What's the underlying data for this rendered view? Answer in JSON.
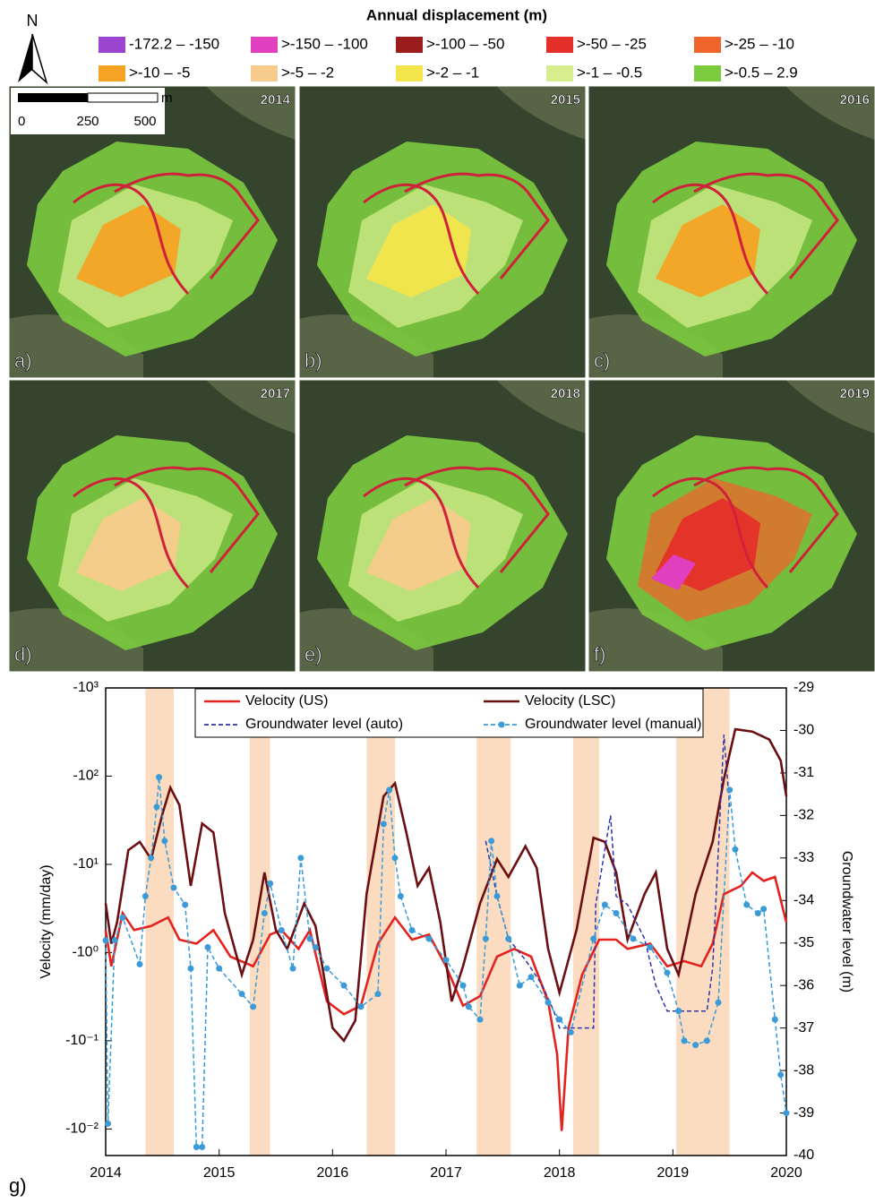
{
  "north_arrow": "N",
  "legend": {
    "title": "Annual displacement (m)",
    "items": [
      {
        "label": "-172.2 – -150",
        "color": "#9a44cf"
      },
      {
        "label": ">-150 – -100",
        "color": "#e03fbf"
      },
      {
        "label": ">-100 – -50",
        "color": "#9b1c1c"
      },
      {
        "label": ">-50 – -25",
        "color": "#e5302a"
      },
      {
        "label": ">-25 – -10",
        "color": "#f0652b"
      },
      {
        "label": ">-10 – -5",
        "color": "#f4a324"
      },
      {
        "label": ">-5 – -2",
        "color": "#f7cb8b"
      },
      {
        "label": ">-2 – -1",
        "color": "#f3e54b"
      },
      {
        "label": ">-1 – -0.5",
        "color": "#d6ee8e"
      },
      {
        "label": ">-0.5 – 2.9",
        "color": "#7ccb3e"
      }
    ]
  },
  "scale_bar": {
    "unit": "m",
    "labels": [
      "0",
      "250",
      "500"
    ]
  },
  "panels": [
    {
      "letter": "a)",
      "year": "2014"
    },
    {
      "letter": "b)",
      "year": "2015"
    },
    {
      "letter": "c)",
      "year": "2016"
    },
    {
      "letter": "d)",
      "year": "2017"
    },
    {
      "letter": "e)",
      "year": "2018"
    },
    {
      "letter": "f)",
      "year": "2019"
    }
  ],
  "chart_label": "g)",
  "chart_data": {
    "type": "line",
    "y_label": "Velocity (mm/day)",
    "y2_label": "Groundwater level (m)",
    "xlim": [
      2014,
      2020
    ],
    "xticks": [
      2014,
      2015,
      2016,
      2017,
      2018,
      2019,
      2020
    ],
    "ylim": [
      -1000,
      -0.005
    ],
    "y_log": true,
    "yticks": [
      {
        "value": -1000,
        "label": "-10³"
      },
      {
        "value": -100,
        "label": "-10²"
      },
      {
        "value": -10,
        "label": "-10¹"
      },
      {
        "value": -1,
        "label": "-10⁰"
      },
      {
        "value": -0.1,
        "label": "-10⁻¹"
      },
      {
        "value": -0.01,
        "label": "-10⁻²"
      }
    ],
    "y2lim": [
      -29,
      -40
    ],
    "y2ticks": [
      -29,
      -30,
      -31,
      -32,
      -33,
      -34,
      -35,
      -36,
      -37,
      -38,
      -39,
      -40
    ],
    "shaded_periods": [
      [
        2014.35,
        2014.6
      ],
      [
        2015.27,
        2015.45
      ],
      [
        2016.3,
        2016.55
      ],
      [
        2017.27,
        2017.57
      ],
      [
        2018.12,
        2018.35
      ],
      [
        2019.03,
        2019.5
      ]
    ],
    "shade_color": "#fbdcc0",
    "legend_position": "top",
    "series": [
      {
        "name": "Velocity (US)",
        "color": "#e3231f",
        "dash": false,
        "marker": false,
        "x": [
          2014.0,
          2014.05,
          2014.15,
          2014.25,
          2014.4,
          2014.55,
          2014.65,
          2014.8,
          2014.95,
          2015.1,
          2015.3,
          2015.45,
          2015.55,
          2015.7,
          2015.8,
          2015.95,
          2016.1,
          2016.25,
          2016.4,
          2016.55,
          2016.7,
          2016.85,
          2017.0,
          2017.15,
          2017.3,
          2017.45,
          2017.6,
          2017.75,
          2017.9,
          2017.98,
          2018.02,
          2018.08,
          2018.2,
          2018.35,
          2018.5,
          2018.6,
          2018.8,
          2018.95,
          2019.1,
          2019.25,
          2019.35,
          2019.45,
          2019.6,
          2019.7,
          2019.8,
          2019.9,
          2020.0
        ],
        "values": [
          -1.8,
          -0.7,
          -2.8,
          -1.8,
          -2,
          -2.5,
          -1.4,
          -1.26,
          -1.8,
          -0.9,
          -0.7,
          -1.6,
          -1.8,
          -1.1,
          -1.8,
          -0.28,
          -0.2,
          -0.25,
          -1.26,
          -2.5,
          -1.4,
          -1.6,
          -0.7,
          -0.25,
          -0.32,
          -0.9,
          -1.1,
          -0.9,
          -0.28,
          -0.07,
          -0.0095,
          -0.14,
          -0.56,
          -1.4,
          -1.4,
          -1.1,
          -1.26,
          -0.7,
          -0.8,
          -0.7,
          -1.26,
          -4.6,
          -5.7,
          -8.1,
          -6.5,
          -7.2,
          -2.2
        ]
      },
      {
        "name": "Velocity (LSC)",
        "color": "#6b0f12",
        "dash": false,
        "marker": false,
        "x": [
          2014.0,
          2014.05,
          2014.1,
          2014.2,
          2014.3,
          2014.4,
          2014.5,
          2014.57,
          2014.65,
          2014.75,
          2014.85,
          2014.95,
          2015.05,
          2015.2,
          2015.3,
          2015.4,
          2015.5,
          2015.6,
          2015.75,
          2015.85,
          2016.0,
          2016.1,
          2016.2,
          2016.3,
          2016.45,
          2016.55,
          2016.65,
          2016.75,
          2016.85,
          2016.95,
          2017.05,
          2017.15,
          2017.3,
          2017.45,
          2017.55,
          2017.7,
          2017.8,
          2017.9,
          2018.0,
          2018.15,
          2018.3,
          2018.4,
          2018.5,
          2018.6,
          2018.75,
          2018.85,
          2018.95,
          2019.05,
          2019.2,
          2019.35,
          2019.45,
          2019.55,
          2019.7,
          2019.85,
          2019.95,
          2020.0
        ],
        "values": [
          -3.6,
          -1.26,
          -2.2,
          -14.5,
          -18,
          -11.5,
          -37,
          -74,
          -47,
          -5.7,
          -29,
          -23,
          -2.8,
          -0.56,
          -1.4,
          -8.1,
          -1.8,
          -1.1,
          -3.6,
          -2,
          -0.14,
          -0.1,
          -0.17,
          -4.6,
          -59,
          -83,
          -23,
          -5.7,
          -9.1,
          -2.2,
          -0.28,
          -0.7,
          -3.6,
          -11.5,
          -7.2,
          -16,
          -9.1,
          -1.1,
          -0.35,
          -1.8,
          -20,
          -18,
          -8.1,
          -1.4,
          -4.6,
          -8.1,
          -1.1,
          -0.56,
          -4.6,
          -18,
          -93,
          -340,
          -320,
          -260,
          -150,
          -59
        ]
      },
      {
        "name": "Groundwater level (auto)",
        "color": "#3036a8",
        "axis": "y2",
        "dash": true,
        "marker": false,
        "x": [
          2017.35,
          2017.45,
          2017.55,
          2017.7,
          2017.85,
          2017.95,
          2018.0,
          2018.3,
          2018.32,
          2018.45,
          2018.5,
          2018.6,
          2018.75,
          2018.85,
          2018.95,
          2019.05,
          2019.3,
          2019.35,
          2019.45,
          2019.5
        ],
        "values": [
          -32.6,
          -33.9,
          -34.9,
          -35.4,
          -36.0,
          -36.6,
          -37.0,
          -37.0,
          -34.1,
          -32.0,
          -33.9,
          -34.1,
          -34.9,
          -36.0,
          -36.6,
          -36.6,
          -36.6,
          -35.6,
          -30.1,
          -31.8
        ]
      },
      {
        "name": "Groundwater level (manual)",
        "color": "#3a9bd8",
        "axis": "y2",
        "dash": true,
        "marker": true,
        "x": [
          2014.0,
          2014.02,
          2014.08,
          2014.15,
          2014.3,
          2014.35,
          2014.4,
          2014.45,
          2014.47,
          2014.52,
          2014.6,
          2014.7,
          2014.75,
          2014.8,
          2014.85,
          2014.9,
          2015.0,
          2015.2,
          2015.3,
          2015.4,
          2015.45,
          2015.55,
          2015.65,
          2015.72,
          2015.8,
          2015.85,
          2015.95,
          2016.1,
          2016.25,
          2016.4,
          2016.45,
          2016.5,
          2016.55,
          2016.6,
          2016.7,
          2016.85,
          2017.0,
          2017.15,
          2017.2,
          2017.3,
          2017.35,
          2017.4,
          2017.45,
          2017.55,
          2017.65,
          2017.75,
          2017.9,
          2018.0,
          2018.1,
          2018.3,
          2018.4,
          2018.5,
          2018.65,
          2018.8,
          2018.95,
          2019.05,
          2019.1,
          2019.2,
          2019.3,
          2019.4,
          2019.5,
          2019.55,
          2019.65,
          2019.75,
          2019.8,
          2019.9,
          2019.95,
          2020.0
        ],
        "values": [
          -34.94,
          -39.25,
          -34.94,
          -34.4,
          -35.5,
          -33.9,
          -33.0,
          -31.8,
          -31.1,
          -32.6,
          -33.7,
          -34.1,
          -35.6,
          -39.8,
          -39.8,
          -35.1,
          -35.6,
          -36.2,
          -36.5,
          -34.3,
          -33.6,
          -34.7,
          -35.6,
          -33.0,
          -34.9,
          -35.1,
          -35.6,
          -36.0,
          -36.5,
          -36.2,
          -32.2,
          -31.4,
          -33.0,
          -33.9,
          -34.7,
          -34.9,
          -35.4,
          -36.0,
          -36.5,
          -36.8,
          -34.9,
          -32.6,
          -33.9,
          -34.9,
          -36.0,
          -35.8,
          -36.4,
          -36.8,
          -37.1,
          -34.9,
          -34.1,
          -34.3,
          -34.9,
          -35.1,
          -35.7,
          -36.6,
          -37.3,
          -37.4,
          -37.3,
          -36.4,
          -31.4,
          -32.8,
          -34.1,
          -34.3,
          -34.2,
          -36.8,
          -38.1,
          -39.0
        ]
      }
    ]
  }
}
